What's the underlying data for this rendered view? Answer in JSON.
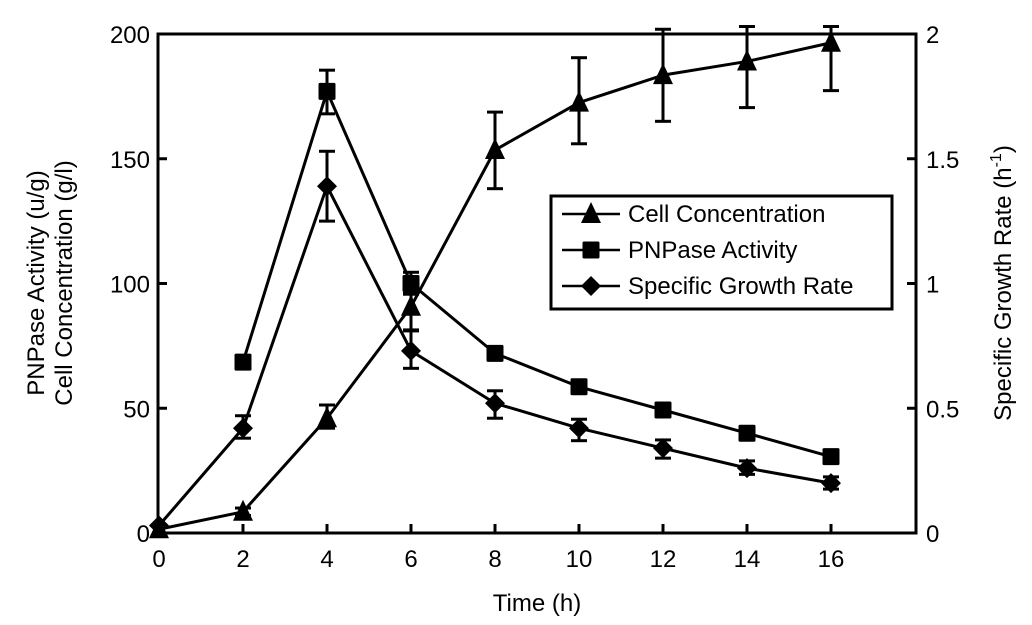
{
  "chart_data": {
    "type": "line",
    "title": "",
    "xlabel": "Time (h)",
    "ylabel_lines": [
      "PNPase Activity (u/g)",
      "Cell Concentration (g/l)"
    ],
    "y2label": "Specific Growth Rate (h",
    "y2label_superscript": "-1",
    "y2label_suffix": ")",
    "xlim": [
      0,
      18
    ],
    "ylim": [
      0,
      200
    ],
    "y2lim": [
      0,
      2
    ],
    "x_ticks": [
      0,
      2,
      4,
      6,
      8,
      10,
      12,
      14,
      16
    ],
    "x_tick_labels": [
      "0",
      "2",
      "4",
      "6",
      "8",
      "10",
      "12",
      "14",
      "16"
    ],
    "y_ticks": [
      0,
      50,
      100,
      150,
      200
    ],
    "y_tick_labels": [
      "0",
      "50",
      "100",
      "150",
      "200"
    ],
    "y2_ticks": [
      0,
      0.5,
      1,
      1.5,
      2
    ],
    "y2_tick_labels": [
      "0",
      "0.5",
      "1",
      "1.5",
      "2"
    ],
    "grid": false,
    "legend_position": "center-right",
    "series": [
      {
        "name": "Cell Concentration",
        "marker": "triangle",
        "axis": "left",
        "x": [
          0,
          2,
          4,
          6,
          8,
          10,
          12,
          14,
          16
        ],
        "values": [
          1.5,
          8.5,
          46,
          90.7,
          153.5,
          172.5,
          183.5,
          189,
          196.5
        ],
        "err_low": [
          null,
          7,
          42,
          81.4,
          138,
          156,
          165,
          170.5,
          177.3
        ],
        "err_high": [
          null,
          10,
          51.3,
          96,
          168.7,
          190.5,
          201.9,
          203,
          203
        ]
      },
      {
        "name": "PNPase Activity",
        "marker": "square",
        "axis": "left",
        "x": [
          2,
          4,
          6,
          8,
          10,
          12,
          14,
          16
        ],
        "values": [
          68.5,
          177,
          100,
          72,
          58.6,
          49.3,
          40,
          30.6
        ],
        "err_low": [
          null,
          168,
          95.7,
          null,
          null,
          null,
          null,
          null
        ],
        "err_high": [
          null,
          185.5,
          104.5,
          null,
          null,
          null,
          null,
          null
        ]
      },
      {
        "name": "Specific Growth Rate",
        "marker": "diamond",
        "axis": "right",
        "x": [
          0,
          2,
          4,
          6,
          8,
          10,
          12,
          14,
          16
        ],
        "values": [
          0.03,
          0.42,
          1.39,
          0.73,
          0.52,
          0.42,
          0.34,
          0.26,
          0.2
        ],
        "err_low": [
          null,
          0.38,
          1.25,
          0.66,
          0.46,
          0.37,
          0.3,
          0.235,
          0.176
        ],
        "err_high": [
          null,
          0.47,
          1.53,
          0.81,
          0.57,
          0.456,
          0.373,
          0.289,
          0.225
        ]
      }
    ]
  }
}
